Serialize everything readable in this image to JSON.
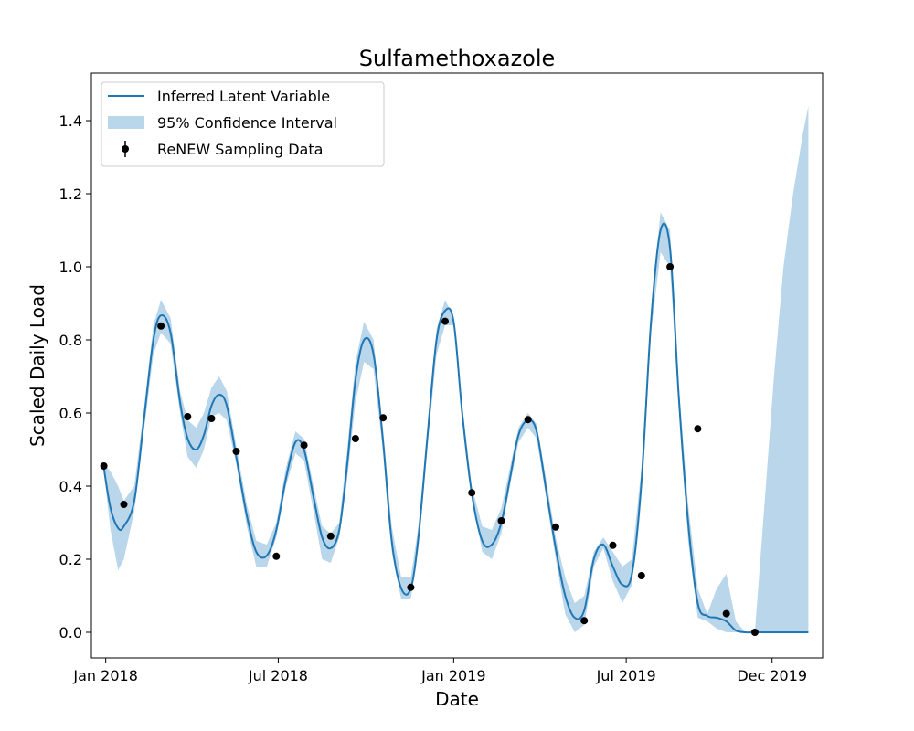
{
  "chart_data": {
    "type": "line",
    "title": "Sulfamethoxazole",
    "xlabel": "Date",
    "ylabel": "Scaled Daily Load",
    "xlim": [
      "2017-12-17",
      "2020-01-23"
    ],
    "ylim": [
      -0.07,
      1.53
    ],
    "grid": false,
    "legend_position": "top-left",
    "x_ticks": [
      {
        "date": "2018-01-01",
        "label": "Jan 2018"
      },
      {
        "date": "2018-07-01",
        "label": "Jul 2018"
      },
      {
        "date": "2019-01-01",
        "label": "Jan 2019"
      },
      {
        "date": "2019-07-01",
        "label": "Jul 2019"
      },
      {
        "date": "2019-12-01",
        "label": "Dec 2019"
      }
    ],
    "y_ticks": [
      0.0,
      0.2,
      0.4,
      0.6,
      0.8,
      1.0,
      1.2,
      1.4
    ],
    "y_tick_labels": [
      "0.0",
      "0.2",
      "0.4",
      "0.6",
      "0.8",
      "1.0",
      "1.2",
      "1.4"
    ],
    "colors": {
      "line": "#1f77b4",
      "band": "#bad6ea",
      "points": "#000000"
    },
    "series": [
      {
        "name": "Inferred Latent Variable",
        "kind": "line",
        "x": [
          "2017-12-30",
          "2018-01-06",
          "2018-01-14",
          "2018-01-20",
          "2018-01-31",
          "2018-02-10",
          "2018-02-20",
          "2018-02-28",
          "2018-03-10",
          "2018-03-20",
          "2018-03-28",
          "2018-04-06",
          "2018-04-14",
          "2018-04-22",
          "2018-04-30",
          "2018-05-08",
          "2018-05-18",
          "2018-05-29",
          "2018-06-08",
          "2018-06-19",
          "2018-06-29",
          "2018-07-09",
          "2018-07-19",
          "2018-07-28",
          "2018-08-07",
          "2018-08-16",
          "2018-08-25",
          "2018-09-03",
          "2018-09-11",
          "2018-09-20",
          "2018-09-29",
          "2018-10-09",
          "2018-10-19",
          "2018-10-28",
          "2018-11-07",
          "2018-11-17",
          "2018-11-25",
          "2018-12-05",
          "2018-12-14",
          "2018-12-23",
          "2019-01-01",
          "2019-01-10",
          "2019-01-20",
          "2019-01-31",
          "2019-02-10",
          "2019-02-20",
          "2019-03-01",
          "2019-03-10",
          "2019-03-20",
          "2019-03-29",
          "2019-04-08",
          "2019-04-18",
          "2019-04-28",
          "2019-05-08",
          "2019-05-18",
          "2019-05-28",
          "2019-06-07",
          "2019-06-17",
          "2019-06-27",
          "2019-07-07",
          "2019-07-17",
          "2019-07-27",
          "2019-08-06",
          "2019-08-16",
          "2019-08-25",
          "2019-09-04",
          "2019-09-14",
          "2019-09-24",
          "2019-10-04",
          "2019-10-14",
          "2019-10-24",
          "2019-11-03",
          "2019-11-13",
          "2019-11-23",
          "2019-12-03",
          "2019-12-13",
          "2019-12-23",
          "2020-01-02",
          "2020-01-08"
        ],
        "y": [
          0.45,
          0.34,
          0.285,
          0.29,
          0.36,
          0.58,
          0.8,
          0.867,
          0.82,
          0.63,
          0.53,
          0.5,
          0.54,
          0.62,
          0.65,
          0.62,
          0.48,
          0.32,
          0.22,
          0.21,
          0.28,
          0.42,
          0.52,
          0.5,
          0.37,
          0.26,
          0.23,
          0.28,
          0.45,
          0.69,
          0.8,
          0.76,
          0.52,
          0.25,
          0.12,
          0.12,
          0.26,
          0.55,
          0.8,
          0.88,
          0.85,
          0.6,
          0.38,
          0.25,
          0.24,
          0.3,
          0.42,
          0.54,
          0.58,
          0.55,
          0.39,
          0.23,
          0.1,
          0.04,
          0.06,
          0.2,
          0.24,
          0.18,
          0.13,
          0.16,
          0.41,
          0.85,
          1.1,
          1.05,
          0.65,
          0.3,
          0.08,
          0.045,
          0.04,
          0.03,
          0.005,
          0.0,
          0.0,
          0.0,
          0.0,
          0.0,
          0.0,
          0.0,
          0.0
        ]
      },
      {
        "name": "95% Confidence Interval",
        "kind": "band",
        "x": [
          "2017-12-30",
          "2018-01-06",
          "2018-01-14",
          "2018-01-20",
          "2018-01-31",
          "2018-02-10",
          "2018-02-20",
          "2018-02-28",
          "2018-03-10",
          "2018-03-20",
          "2018-03-28",
          "2018-04-06",
          "2018-04-14",
          "2018-04-22",
          "2018-04-30",
          "2018-05-08",
          "2018-05-18",
          "2018-05-29",
          "2018-06-08",
          "2018-06-19",
          "2018-06-29",
          "2018-07-09",
          "2018-07-19",
          "2018-07-28",
          "2018-08-07",
          "2018-08-16",
          "2018-08-25",
          "2018-09-03",
          "2018-09-11",
          "2018-09-20",
          "2018-09-29",
          "2018-10-09",
          "2018-10-19",
          "2018-10-28",
          "2018-11-07",
          "2018-11-17",
          "2018-11-25",
          "2018-12-05",
          "2018-12-14",
          "2018-12-23",
          "2019-01-01",
          "2019-01-10",
          "2019-01-20",
          "2019-01-31",
          "2019-02-10",
          "2019-02-20",
          "2019-03-01",
          "2019-03-10",
          "2019-03-20",
          "2019-03-29",
          "2019-04-08",
          "2019-04-18",
          "2019-04-28",
          "2019-05-08",
          "2019-05-18",
          "2019-05-28",
          "2019-06-07",
          "2019-06-17",
          "2019-06-27",
          "2019-07-07",
          "2019-07-17",
          "2019-07-27",
          "2019-08-06",
          "2019-08-16",
          "2019-08-25",
          "2019-09-04",
          "2019-09-14",
          "2019-09-24",
          "2019-10-04",
          "2019-10-14",
          "2019-10-24",
          "2019-11-03",
          "2019-11-13",
          "2019-11-23",
          "2019-12-03",
          "2019-12-13",
          "2019-12-23",
          "2020-01-02",
          "2020-01-08"
        ],
        "lower": [
          0.44,
          0.28,
          0.17,
          0.2,
          0.33,
          0.55,
          0.76,
          0.82,
          0.79,
          0.6,
          0.48,
          0.45,
          0.5,
          0.59,
          0.6,
          0.58,
          0.46,
          0.29,
          0.18,
          0.18,
          0.26,
          0.4,
          0.49,
          0.47,
          0.33,
          0.2,
          0.19,
          0.26,
          0.41,
          0.63,
          0.74,
          0.72,
          0.49,
          0.22,
          0.09,
          0.09,
          0.23,
          0.52,
          0.76,
          0.84,
          0.84,
          0.59,
          0.37,
          0.22,
          0.2,
          0.27,
          0.4,
          0.52,
          0.56,
          0.53,
          0.37,
          0.2,
          0.05,
          0.0,
          0.02,
          0.18,
          0.23,
          0.14,
          0.08,
          0.13,
          0.38,
          0.82,
          1.04,
          1.0,
          0.62,
          0.25,
          0.04,
          0.03,
          0.01,
          0.0,
          0.0,
          0.0,
          0.0,
          0.0,
          0.0,
          0.0,
          0.0,
          0.0,
          0.0
        ],
        "upper": [
          0.46,
          0.44,
          0.4,
          0.36,
          0.4,
          0.61,
          0.84,
          0.91,
          0.86,
          0.66,
          0.58,
          0.56,
          0.6,
          0.67,
          0.7,
          0.66,
          0.51,
          0.35,
          0.25,
          0.24,
          0.3,
          0.45,
          0.55,
          0.53,
          0.4,
          0.29,
          0.27,
          0.3,
          0.49,
          0.74,
          0.85,
          0.8,
          0.55,
          0.29,
          0.15,
          0.15,
          0.29,
          0.58,
          0.83,
          0.91,
          0.86,
          0.62,
          0.4,
          0.29,
          0.28,
          0.34,
          0.45,
          0.56,
          0.6,
          0.57,
          0.42,
          0.26,
          0.15,
          0.08,
          0.1,
          0.22,
          0.26,
          0.22,
          0.18,
          0.2,
          0.45,
          0.88,
          1.15,
          1.1,
          0.68,
          0.35,
          0.12,
          0.05,
          0.12,
          0.16,
          0.03,
          0.0,
          0.0,
          0.35,
          0.7,
          1.0,
          1.2,
          1.36,
          1.44
        ]
      },
      {
        "name": "ReNEW Sampling Data",
        "kind": "points",
        "x": [
          "2017-12-30",
          "2018-01-20",
          "2018-02-28",
          "2018-03-28",
          "2018-04-22",
          "2018-05-18",
          "2018-06-29",
          "2018-07-28",
          "2018-08-25",
          "2018-09-20",
          "2018-10-19",
          "2018-11-17",
          "2018-12-23",
          "2019-01-20",
          "2019-02-20",
          "2019-03-20",
          "2019-04-18",
          "2019-05-18",
          "2019-06-17",
          "2019-07-17",
          "2019-08-16",
          "2019-09-14",
          "2019-10-14",
          "2019-11-13"
        ],
        "y": [
          0.455,
          0.35,
          0.838,
          0.59,
          0.585,
          0.495,
          0.208,
          0.512,
          0.263,
          0.53,
          0.587,
          0.123,
          0.851,
          0.382,
          0.305,
          0.582,
          0.288,
          0.032,
          0.238,
          0.155,
          1.0,
          0.557,
          0.051,
          0.0
        ]
      }
    ]
  }
}
